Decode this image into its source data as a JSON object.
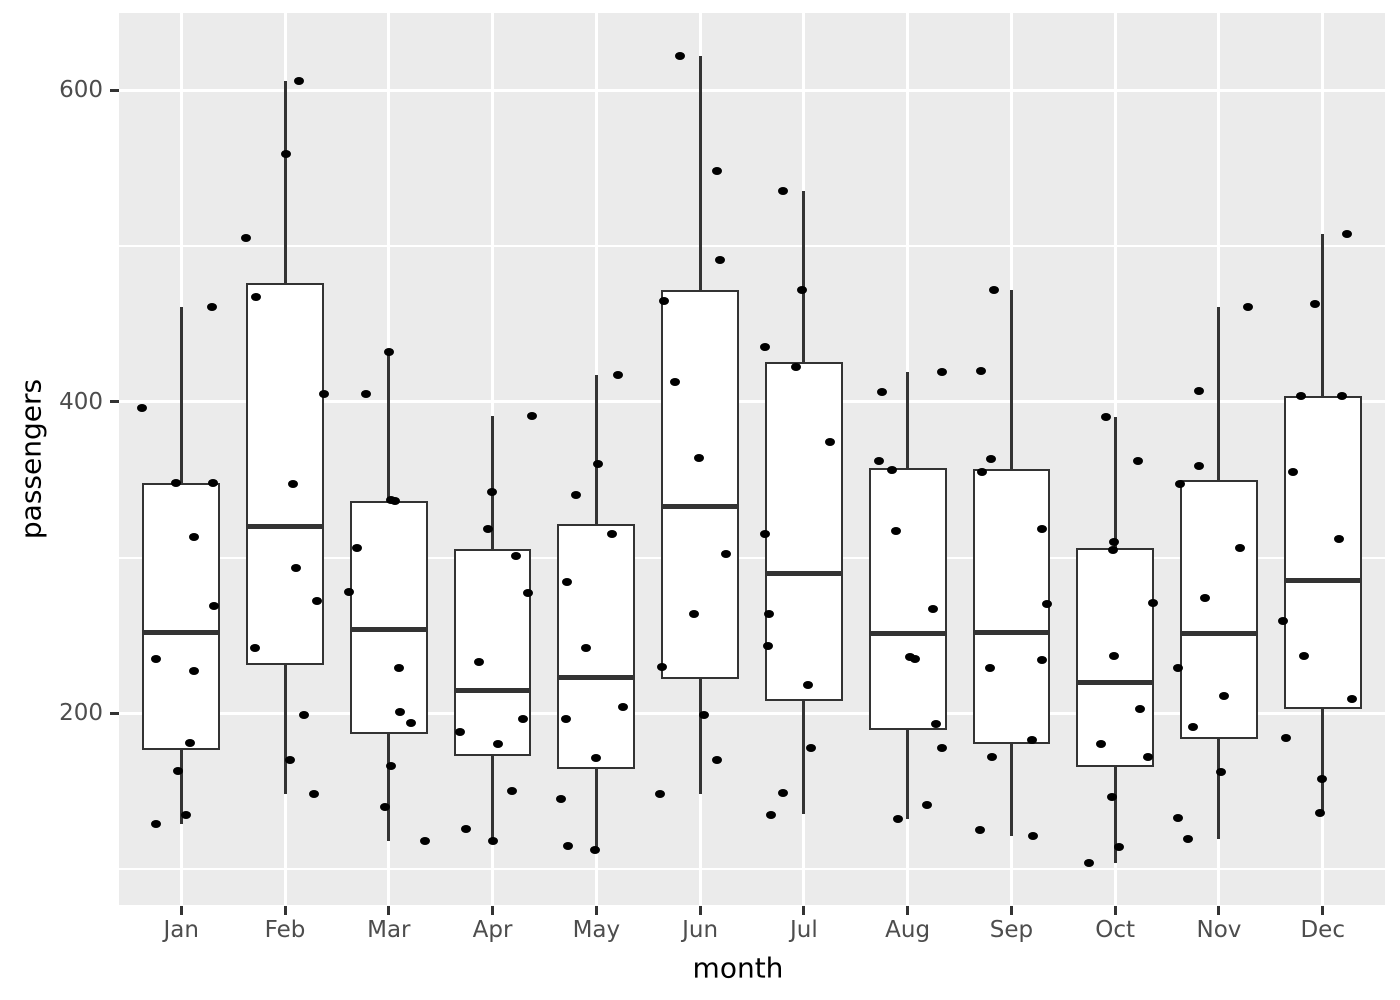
{
  "style": {
    "background": "#FFFFFF",
    "panel_background": "#EBEBEB",
    "gridline_color": "#FFFFFF",
    "tick_label_color": "#4D4D4D",
    "axis_title_color": "#000000",
    "box_outline_color": "#333333",
    "box_fill_color": "#FFFFFF",
    "point_color": "#000000"
  },
  "chart_data": {
    "type": "boxplot",
    "title": "",
    "xlabel": "month",
    "ylabel": "passengers",
    "categories": [
      "Jan",
      "Feb",
      "Mar",
      "Apr",
      "May",
      "Jun",
      "Jul",
      "Aug",
      "Sep",
      "Oct",
      "Nov",
      "Dec"
    ],
    "y_ticks": [
      200,
      400,
      600
    ],
    "y_minor_ticks": [
      100,
      300,
      500
    ],
    "ylim": [
      76.9,
      649.6
    ],
    "grid": true,
    "legend_position": "none",
    "jitter_overlay": true,
    "series": [
      {
        "label": "Jan",
        "q1": 176.5,
        "median": 252,
        "q3": 348,
        "whisker_low": 129,
        "whisker_high": 461,
        "points": [
          [
            461,
            0.3
          ],
          [
            396,
            -0.38
          ],
          [
            348,
            -0.05
          ],
          [
            348,
            0.31
          ],
          [
            313,
            0.12
          ],
          [
            269,
            0.32
          ],
          [
            235,
            -0.24
          ],
          [
            227,
            0.12
          ],
          [
            181,
            0.08
          ],
          [
            163,
            -0.03
          ],
          [
            135,
            0.05
          ],
          [
            129,
            -0.24
          ]
        ]
      },
      {
        "label": "Feb",
        "q1": 231.25,
        "median": 320,
        "q3": 476.5,
        "whisker_low": 148,
        "whisker_high": 606,
        "points": [
          [
            606,
            0.13
          ],
          [
            559,
            0.01
          ],
          [
            505,
            -0.38
          ],
          [
            467,
            -0.28
          ],
          [
            405,
            0.38
          ],
          [
            347,
            0.08
          ],
          [
            293,
            0.11
          ],
          [
            272,
            0.31
          ],
          [
            242,
            -0.29
          ],
          [
            199,
            0.18
          ],
          [
            170,
            0.05
          ],
          [
            148,
            0.28
          ]
        ]
      },
      {
        "label": "Mar",
        "q1": 187,
        "median": 253.5,
        "q3": 336.25,
        "whisker_low": 118,
        "whisker_high": 432,
        "points": [
          [
            432,
            0.0
          ],
          [
            405,
            -0.22
          ],
          [
            337,
            0.02
          ],
          [
            336,
            0.06
          ],
          [
            306,
            -0.31
          ],
          [
            278,
            -0.38
          ],
          [
            229,
            0.1
          ],
          [
            201,
            0.11
          ],
          [
            194,
            0.21
          ],
          [
            166,
            0.02
          ],
          [
            140,
            -0.04
          ],
          [
            118,
            0.35
          ]
        ]
      },
      {
        "label": "Apr",
        "q1": 172.5,
        "median": 214.5,
        "q3": 305.25,
        "whisker_low": 118,
        "whisker_high": 391,
        "points": [
          [
            391,
            0.38
          ],
          [
            342,
            -0.01
          ],
          [
            318,
            -0.04
          ],
          [
            301,
            0.23
          ],
          [
            277,
            0.34
          ],
          [
            233,
            -0.13
          ],
          [
            196,
            0.29
          ],
          [
            188,
            -0.31
          ],
          [
            180,
            0.05
          ],
          [
            150,
            0.19
          ],
          [
            126,
            -0.26
          ],
          [
            118,
            0.0
          ]
        ]
      },
      {
        "label": "May",
        "q1": 164.5,
        "median": 223,
        "q3": 321.25,
        "whisker_low": 112,
        "whisker_high": 417,
        "points": [
          [
            417,
            0.21
          ],
          [
            360,
            0.02
          ],
          [
            340,
            -0.2
          ],
          [
            315,
            0.15
          ],
          [
            284,
            -0.28
          ],
          [
            242,
            -0.1
          ],
          [
            204,
            0.26
          ],
          [
            196,
            -0.29
          ],
          [
            171,
            0.0
          ],
          [
            145,
            -0.34
          ],
          [
            115,
            -0.27
          ],
          [
            112,
            -0.01
          ]
        ]
      },
      {
        "label": "Jun",
        "q1": 222.25,
        "median": 333,
        "q3": 471.5,
        "whisker_low": 148,
        "whisker_high": 622,
        "points": [
          [
            622,
            -0.19
          ],
          [
            548,
            0.16
          ],
          [
            491,
            0.19
          ],
          [
            465,
            -0.35
          ],
          [
            413,
            -0.24
          ],
          [
            364,
            -0.01
          ],
          [
            302,
            0.25
          ],
          [
            264,
            -0.06
          ],
          [
            230,
            -0.37
          ],
          [
            199,
            0.04
          ],
          [
            170,
            0.16
          ],
          [
            148,
            -0.39
          ]
        ]
      },
      {
        "label": "Jul",
        "q1": 208,
        "median": 289.5,
        "q3": 425.25,
        "whisker_low": 135,
        "whisker_high": 535,
        "points": [
          [
            535,
            -0.2
          ],
          [
            472,
            -0.02
          ],
          [
            435,
            -0.37
          ],
          [
            422,
            -0.08
          ],
          [
            374,
            0.25
          ],
          [
            315,
            -0.37
          ],
          [
            264,
            -0.34
          ],
          [
            243,
            -0.35
          ],
          [
            218,
            0.04
          ],
          [
            178,
            0.07
          ],
          [
            149,
            -0.2
          ],
          [
            135,
            -0.32
          ]
        ]
      },
      {
        "label": "Aug",
        "q1": 189.25,
        "median": 251.5,
        "q3": 357.5,
        "whisker_low": 132,
        "whisker_high": 419,
        "points": [
          [
            419,
            0.33
          ],
          [
            406,
            -0.25
          ],
          [
            362,
            -0.28
          ],
          [
            356,
            -0.15
          ],
          [
            317,
            -0.11
          ],
          [
            267,
            0.24
          ],
          [
            236,
            0.02
          ],
          [
            235,
            0.07
          ],
          [
            193,
            0.27
          ],
          [
            178,
            0.33
          ],
          [
            141,
            0.19
          ],
          [
            132,
            -0.09
          ]
        ]
      },
      {
        "label": "Sep",
        "q1": 180.25,
        "median": 252,
        "q3": 357,
        "whisker_low": 121,
        "whisker_high": 472,
        "points": [
          [
            472,
            -0.17
          ],
          [
            420,
            -0.29
          ],
          [
            363,
            -0.2
          ],
          [
            355,
            -0.28
          ],
          [
            318,
            0.29
          ],
          [
            270,
            0.34
          ],
          [
            234,
            0.29
          ],
          [
            229,
            -0.21
          ],
          [
            183,
            0.2
          ],
          [
            172,
            -0.19
          ],
          [
            125,
            -0.3
          ],
          [
            121,
            0.21
          ]
        ]
      },
      {
        "label": "Oct",
        "q1": 165.5,
        "median": 220,
        "q3": 306.25,
        "whisker_low": 104,
        "whisker_high": 390,
        "points": [
          [
            390,
            -0.09
          ],
          [
            362,
            0.22
          ],
          [
            310,
            -0.01
          ],
          [
            305,
            -0.02
          ],
          [
            271,
            0.36
          ],
          [
            237,
            -0.01
          ],
          [
            203,
            0.24
          ],
          [
            180,
            -0.14
          ],
          [
            172,
            0.32
          ],
          [
            146,
            -0.03
          ],
          [
            114,
            0.04
          ],
          [
            104,
            -0.25
          ]
        ]
      },
      {
        "label": "Nov",
        "q1": 183.75,
        "median": 251.5,
        "q3": 350,
        "whisker_low": 119,
        "whisker_high": 461,
        "points": [
          [
            461,
            0.28
          ],
          [
            407,
            -0.19
          ],
          [
            359,
            -0.19
          ],
          [
            347,
            -0.38
          ],
          [
            306,
            0.2
          ],
          [
            274,
            -0.13
          ],
          [
            229,
            -0.39
          ],
          [
            211,
            0.05
          ],
          [
            191,
            -0.25
          ],
          [
            162,
            0.02
          ],
          [
            133,
            -0.39
          ],
          [
            119,
            -0.3
          ]
        ]
      },
      {
        "label": "Dec",
        "q1": 202.75,
        "median": 285.5,
        "q3": 404,
        "whisker_low": 136,
        "whisker_high": 508,
        "points": [
          [
            508,
            0.23
          ],
          [
            463,
            -0.07
          ],
          [
            404,
            -0.21
          ],
          [
            404,
            0.19
          ],
          [
            355,
            -0.29
          ],
          [
            312,
            0.16
          ],
          [
            259,
            -0.38
          ],
          [
            237,
            -0.18
          ],
          [
            209,
            0.28
          ],
          [
            184,
            -0.35
          ],
          [
            158,
            -0.01
          ],
          [
            136,
            -0.03
          ]
        ]
      }
    ]
  }
}
